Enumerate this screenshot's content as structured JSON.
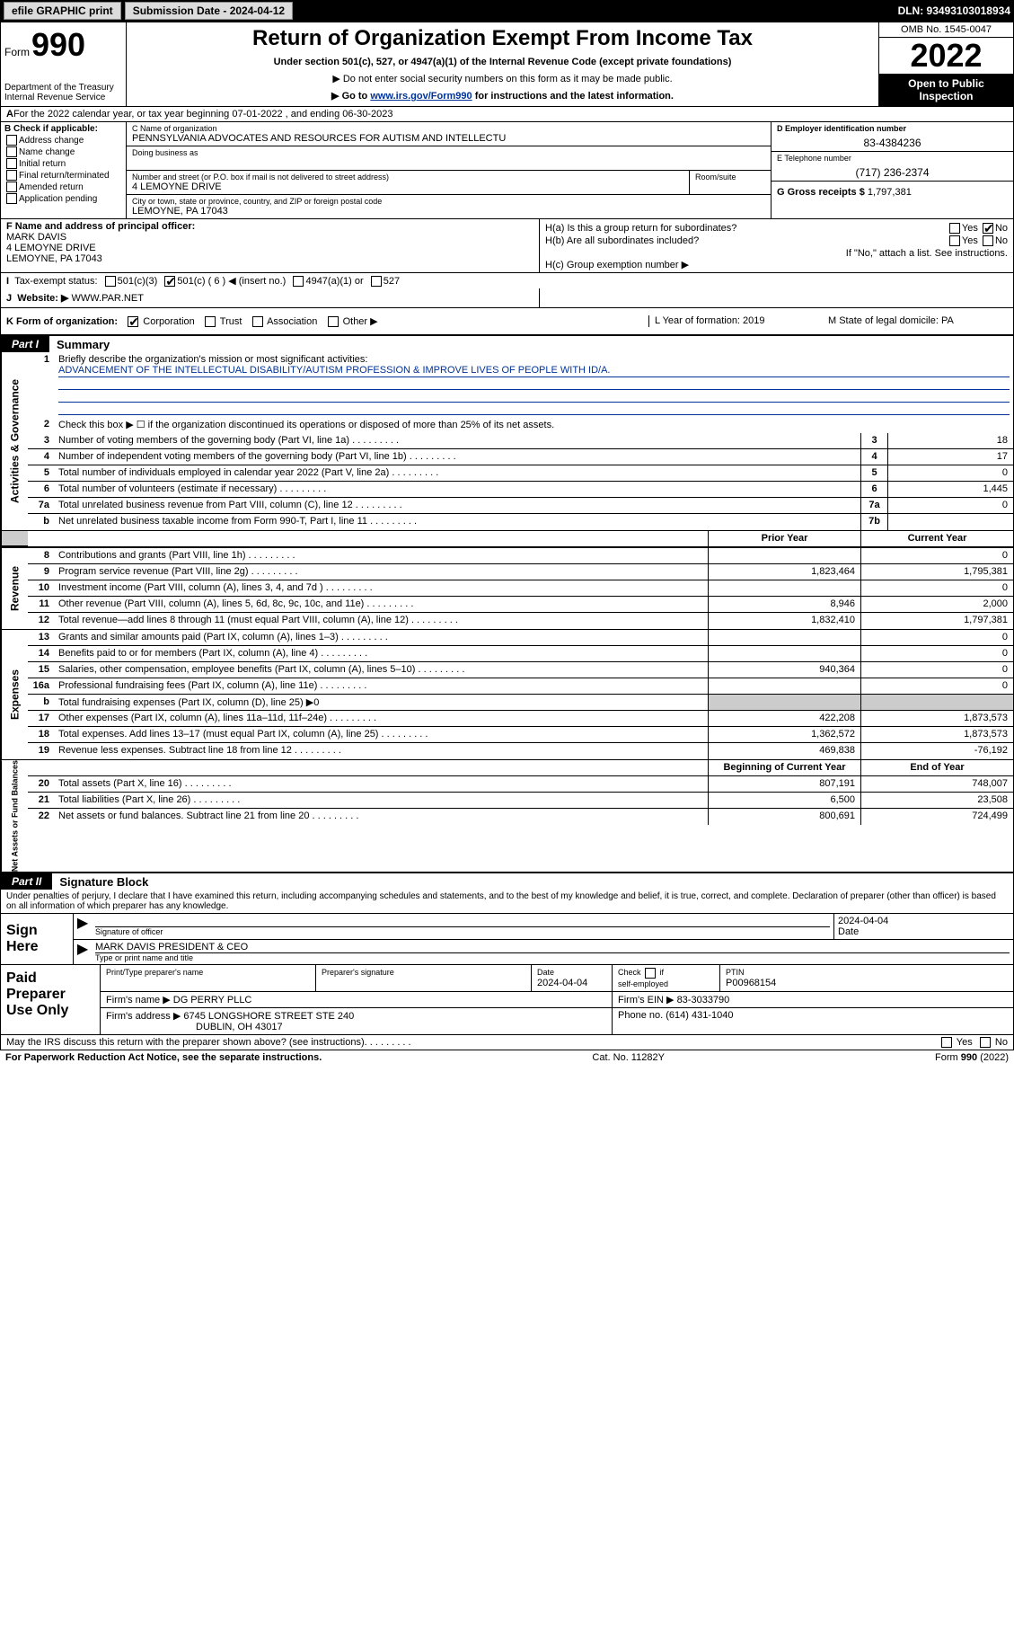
{
  "topbar": {
    "efile_btn": "efile GRAPHIC print",
    "sub_label": "Submission Date - 2024-04-12",
    "dln": "DLN: 93493103018934"
  },
  "header": {
    "form_word": "Form",
    "form_num": "990",
    "dept": "Department of the Treasury\nInternal Revenue Service",
    "title": "Return of Organization Exempt From Income Tax",
    "subtitle": "Under section 501(c), 527, or 4947(a)(1) of the Internal Revenue Code (except private foundations)",
    "note1": "▶ Do not enter social security numbers on this form as it may be made public.",
    "note2_pre": "▶ Go to ",
    "note2_link": "www.irs.gov/Form990",
    "note2_post": " for instructions and the latest information.",
    "omb": "OMB No. 1545-0047",
    "year": "2022",
    "open": "Open to Public Inspection"
  },
  "line_a": {
    "text": "For the 2022 calendar year, or tax year beginning 07-01-2022   , and ending 06-30-2023"
  },
  "block_b": {
    "label": "B Check if applicable:",
    "opts": [
      "Address change",
      "Name change",
      "Initial return",
      "Final return/terminated",
      "Amended return",
      "Application pending"
    ]
  },
  "block_c": {
    "name_label": "C Name of organization",
    "name": "PENNSYLVANIA ADVOCATES AND RESOURCES FOR AUTISM AND INTELLECTU",
    "dba_label": "Doing business as",
    "street_label": "Number and street (or P.O. box if mail is not delivered to street address)",
    "street": "4 LEMOYNE DRIVE",
    "room_label": "Room/suite",
    "city_label": "City or town, state or province, country, and ZIP or foreign postal code",
    "city": "LEMOYNE, PA  17043"
  },
  "block_d": {
    "label": "D Employer identification number",
    "value": "83-4384236"
  },
  "block_e": {
    "label": "E Telephone number",
    "value": "(717) 236-2374"
  },
  "block_g": {
    "label": "G Gross receipts $",
    "value": "1,797,381"
  },
  "block_f": {
    "label": "F Name and address of principal officer:",
    "name": "MARK DAVIS",
    "addr1": "4 LEMOYNE DRIVE",
    "addr2": "LEMOYNE, PA  17043"
  },
  "block_h": {
    "ha": "H(a)  Is this a group return for subordinates?",
    "hb": "H(b)  Are all subordinates included?",
    "hb_note": "If \"No,\" attach a list. See instructions.",
    "hc": "H(c)  Group exemption number ▶",
    "yes": "Yes",
    "no": "No"
  },
  "line_i": {
    "label": "Tax-exempt status:",
    "opt1": "501(c)(3)",
    "opt2": "501(c) ( 6 ) ◀ (insert no.)",
    "opt3": "4947(a)(1) or",
    "opt4": "527"
  },
  "line_j": {
    "label": "Website: ▶",
    "value": "WWW.PAR.NET"
  },
  "line_k": {
    "label": "K Form of organization:",
    "opts": [
      "Corporation",
      "Trust",
      "Association",
      "Other ▶"
    ],
    "l_label": "L Year of formation: 2019",
    "m_label": "M State of legal domicile: PA"
  },
  "part1": {
    "hdr": "Part I",
    "title": "Summary",
    "q1": "Briefly describe the organization's mission or most significant activities:",
    "mission": "ADVANCEMENT OF THE INTELLECTUAL DISABILITY/AUTISM PROFESSION & IMPROVE LIVES OF PEOPLE WITH ID/A.",
    "q2": "Check this box ▶ ☐  if the organization discontinued its operations or disposed of more than 25% of its net assets.",
    "tabs": {
      "gov": "Activities & Governance",
      "rev": "Revenue",
      "exp": "Expenses",
      "net": "Net Assets or Fund Balances"
    },
    "rows_gov": [
      {
        "n": "3",
        "d": "Number of voting members of the governing body (Part VI, line 1a)",
        "cn": "3",
        "v": "18"
      },
      {
        "n": "4",
        "d": "Number of independent voting members of the governing body (Part VI, line 1b)",
        "cn": "4",
        "v": "17"
      },
      {
        "n": "5",
        "d": "Total number of individuals employed in calendar year 2022 (Part V, line 2a)",
        "cn": "5",
        "v": "0"
      },
      {
        "n": "6",
        "d": "Total number of volunteers (estimate if necessary)",
        "cn": "6",
        "v": "1,445"
      },
      {
        "n": "7a",
        "d": "Total unrelated business revenue from Part VIII, column (C), line 12",
        "cn": "7a",
        "v": "0"
      },
      {
        "n": "b",
        "d": "Net unrelated business taxable income from Form 990-T, Part I, line 11",
        "cn": "7b",
        "v": ""
      }
    ],
    "col_hdr_py": "Prior Year",
    "col_hdr_cy": "Current Year",
    "rows_rev": [
      {
        "n": "8",
        "d": "Contributions and grants (Part VIII, line 1h)",
        "py": "",
        "cy": "0"
      },
      {
        "n": "9",
        "d": "Program service revenue (Part VIII, line 2g)",
        "py": "1,823,464",
        "cy": "1,795,381"
      },
      {
        "n": "10",
        "d": "Investment income (Part VIII, column (A), lines 3, 4, and 7d )",
        "py": "",
        "cy": "0"
      },
      {
        "n": "11",
        "d": "Other revenue (Part VIII, column (A), lines 5, 6d, 8c, 9c, 10c, and 11e)",
        "py": "8,946",
        "cy": "2,000"
      },
      {
        "n": "12",
        "d": "Total revenue—add lines 8 through 11 (must equal Part VIII, column (A), line 12)",
        "py": "1,832,410",
        "cy": "1,797,381"
      }
    ],
    "rows_exp": [
      {
        "n": "13",
        "d": "Grants and similar amounts paid (Part IX, column (A), lines 1–3)",
        "py": "",
        "cy": "0"
      },
      {
        "n": "14",
        "d": "Benefits paid to or for members (Part IX, column (A), line 4)",
        "py": "",
        "cy": "0"
      },
      {
        "n": "15",
        "d": "Salaries, other compensation, employee benefits (Part IX, column (A), lines 5–10)",
        "py": "940,364",
        "cy": "0"
      },
      {
        "n": "16a",
        "d": "Professional fundraising fees (Part IX, column (A), line 11e)",
        "py": "",
        "cy": "0"
      },
      {
        "n": "b",
        "d": "Total fundraising expenses (Part IX, column (D), line 25) ▶0",
        "py": "shade",
        "cy": "shade"
      },
      {
        "n": "17",
        "d": "Other expenses (Part IX, column (A), lines 11a–11d, 11f–24e)",
        "py": "422,208",
        "cy": "1,873,573"
      },
      {
        "n": "18",
        "d": "Total expenses. Add lines 13–17 (must equal Part IX, column (A), line 25)",
        "py": "1,362,572",
        "cy": "1,873,573"
      },
      {
        "n": "19",
        "d": "Revenue less expenses. Subtract line 18 from line 12",
        "py": "469,838",
        "cy": "-76,192"
      }
    ],
    "col_hdr_boy": "Beginning of Current Year",
    "col_hdr_eoy": "End of Year",
    "rows_net": [
      {
        "n": "20",
        "d": "Total assets (Part X, line 16)",
        "py": "807,191",
        "cy": "748,007"
      },
      {
        "n": "21",
        "d": "Total liabilities (Part X, line 26)",
        "py": "6,500",
        "cy": "23,508"
      },
      {
        "n": "22",
        "d": "Net assets or fund balances. Subtract line 21 from line 20",
        "py": "800,691",
        "cy": "724,499"
      }
    ]
  },
  "part2": {
    "hdr": "Part II",
    "title": "Signature Block",
    "decl": "Under penalties of perjury, I declare that I have examined this return, including accompanying schedules and statements, and to the best of my knowledge and belief, it is true, correct, and complete. Declaration of preparer (other than officer) is based on all information of which preparer has any knowledge.",
    "sign_here": "Sign Here",
    "sig_of_officer": "Signature of officer",
    "sig_date": "2024-04-04",
    "date_label": "Date",
    "officer_name": "MARK DAVIS  PRESIDENT & CEO",
    "type_name": "Type or print name and title",
    "paid": "Paid Preparer Use Only",
    "prep_name_label": "Print/Type preparer's name",
    "prep_sig_label": "Preparer's signature",
    "prep_date_label": "Date",
    "prep_date": "2024-04-04",
    "check_if": "Check ☐ if self-employed",
    "ptin_label": "PTIN",
    "ptin": "P00968154",
    "firm_name_label": "Firm's name    ▶",
    "firm_name": "DG PERRY PLLC",
    "firm_ein_label": "Firm's EIN ▶",
    "firm_ein": "83-3033790",
    "firm_addr_label": "Firm's address ▶",
    "firm_addr1": "6745 LONGSHORE STREET STE 240",
    "firm_addr2": "DUBLIN, OH  43017",
    "phone_label": "Phone no.",
    "phone": "(614) 431-1040",
    "may_irs": "May the IRS discuss this return with the preparer shown above? (see instructions)",
    "paperwork": "For Paperwork Reduction Act Notice, see the separate instructions.",
    "catno": "Cat. No. 11282Y",
    "formfoot": "Form 990 (2022)"
  }
}
